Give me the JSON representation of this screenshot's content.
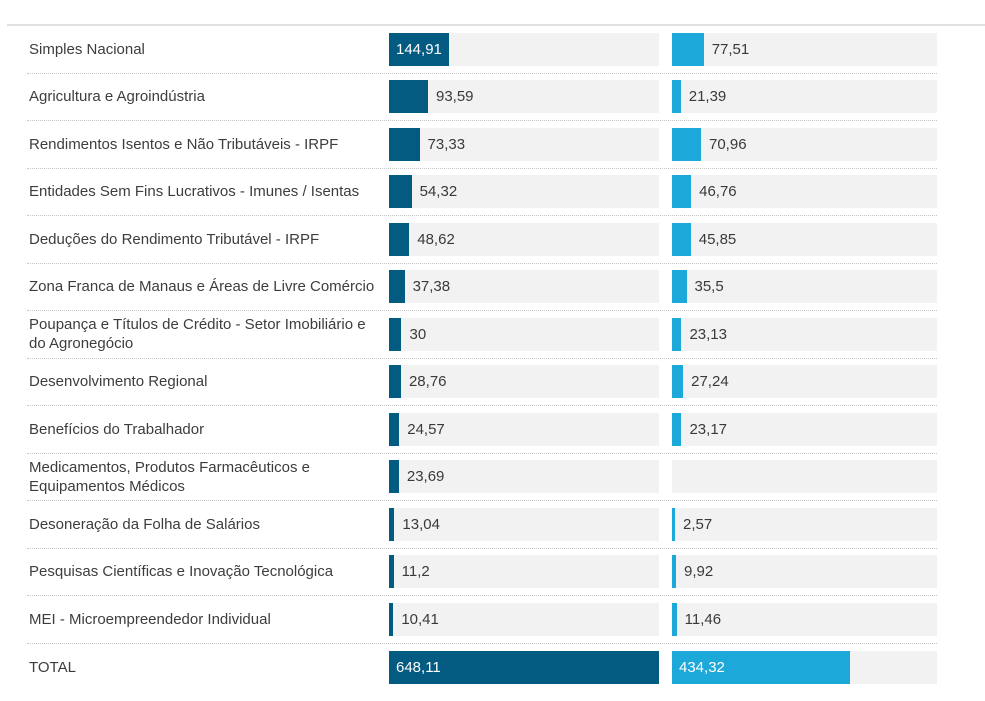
{
  "palette": {
    "series1_bar": "#045b81",
    "series2_bar": "#1ca8d8",
    "bar_track": "#f2f2f2",
    "top_border": "#e0e0e0",
    "row_divider": "#c6c6c6",
    "label_text": "#3d3d3d",
    "value_text": "#3a3a3a",
    "inside_value_text": "#ffffff"
  },
  "chart_data": {
    "type": "bar",
    "orientation": "horizontal",
    "grid": "off",
    "legend": "none",
    "value_format": "decimal comma (pt-BR)",
    "scale": {
      "min": 0,
      "max": 648.11,
      "note": "bar width proportional to value; TOTAL of first series spans full track"
    },
    "categories": [
      "Simples Nacional",
      "Agricultura e Agroindústria",
      "Rendimentos Isentos e Não Tributáveis - IRPF",
      "Entidades Sem Fins Lucrativos - Imunes / Isentas",
      "Deduções do Rendimento Tributável - IRPF",
      "Zona Franca de Manaus e Áreas de Livre Comércio",
      "Poupança e Títulos de Crédito - Setor Imobiliário e do Agronegócio",
      "Desenvolvimento Regional",
      "Benefícios do Trabalhador",
      "Medicamentos, Produtos Farmacêuticos e Equipamentos Médicos",
      "Desoneração da Folha de Salários",
      "Pesquisas Científicas e Inovação Tecnológica",
      "MEI - Microempreendedor Individual",
      "TOTAL"
    ],
    "rows": [
      {
        "label": "Simples Nacional",
        "series1": {
          "value": 144.91,
          "display": "144,91",
          "value_inside_bar": true
        },
        "series2": {
          "value": 77.51,
          "display": "77,51",
          "value_inside_bar": false
        },
        "is_total": false
      },
      {
        "label": "Agricultura e Agroindústria",
        "series1": {
          "value": 93.59,
          "display": "93,59",
          "value_inside_bar": false
        },
        "series2": {
          "value": 21.39,
          "display": "21,39",
          "value_inside_bar": false
        },
        "is_total": false
      },
      {
        "label": "Rendimentos Isentos e Não Tributáveis - IRPF",
        "series1": {
          "value": 73.33,
          "display": "73,33",
          "value_inside_bar": false
        },
        "series2": {
          "value": 70.96,
          "display": "70,96",
          "value_inside_bar": false
        },
        "is_total": false
      },
      {
        "label": "Entidades Sem Fins Lucrativos - Imunes / Isentas",
        "series1": {
          "value": 54.32,
          "display": "54,32",
          "value_inside_bar": false
        },
        "series2": {
          "value": 46.76,
          "display": "46,76",
          "value_inside_bar": false
        },
        "is_total": false
      },
      {
        "label": "Deduções do Rendimento Tributável - IRPF",
        "series1": {
          "value": 48.62,
          "display": "48,62",
          "value_inside_bar": false
        },
        "series2": {
          "value": 45.85,
          "display": "45,85",
          "value_inside_bar": false
        },
        "is_total": false
      },
      {
        "label": "Zona Franca de Manaus e Áreas de Livre Comércio",
        "series1": {
          "value": 37.38,
          "display": "37,38",
          "value_inside_bar": false
        },
        "series2": {
          "value": 35.5,
          "display": "35,5",
          "value_inside_bar": false
        },
        "is_total": false
      },
      {
        "label": "Poupança e Títulos de Crédito - Setor Imobiliário e do Agronegócio",
        "series1": {
          "value": 30,
          "display": "30",
          "value_inside_bar": false
        },
        "series2": {
          "value": 23.13,
          "display": "23,13",
          "value_inside_bar": false
        },
        "is_total": false
      },
      {
        "label": "Desenvolvimento Regional",
        "series1": {
          "value": 28.76,
          "display": "28,76",
          "value_inside_bar": false
        },
        "series2": {
          "value": 27.24,
          "display": "27,24",
          "value_inside_bar": false
        },
        "is_total": false
      },
      {
        "label": "Benefícios do Trabalhador",
        "series1": {
          "value": 24.57,
          "display": "24,57",
          "value_inside_bar": false
        },
        "series2": {
          "value": 23.17,
          "display": "23,17",
          "value_inside_bar": false
        },
        "is_total": false
      },
      {
        "label": "Medicamentos, Produtos Farmacêuticos e Equipamentos Médicos",
        "series1": {
          "value": 23.69,
          "display": "23,69",
          "value_inside_bar": false
        },
        "series2": {
          "value": null,
          "display": "",
          "value_inside_bar": false
        },
        "is_total": false
      },
      {
        "label": "Desoneração da Folha de Salários",
        "series1": {
          "value": 13.04,
          "display": "13,04",
          "value_inside_bar": false
        },
        "series2": {
          "value": 2.57,
          "display": "2,57",
          "value_inside_bar": false
        },
        "is_total": false
      },
      {
        "label": "Pesquisas Científicas e Inovação Tecnológica",
        "series1": {
          "value": 11.2,
          "display": "11,2",
          "value_inside_bar": false
        },
        "series2": {
          "value": 9.92,
          "display": "9,92",
          "value_inside_bar": false
        },
        "is_total": false
      },
      {
        "label": "MEI - Microempreendedor Individual",
        "series1": {
          "value": 10.41,
          "display": "10,41",
          "value_inside_bar": false
        },
        "series2": {
          "value": 11.46,
          "display": "11,46",
          "value_inside_bar": false
        },
        "is_total": false
      },
      {
        "label": "TOTAL",
        "series1": {
          "value": 648.11,
          "display": "648,11",
          "value_inside_bar": true
        },
        "series2": {
          "value": 434.32,
          "display": "434,32",
          "value_inside_bar": true
        },
        "is_total": true
      }
    ]
  }
}
